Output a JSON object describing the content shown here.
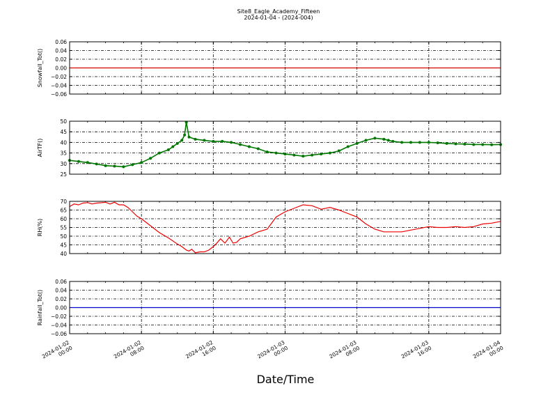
{
  "title": "Site8_Eagle_Academy_Fifteen",
  "subtitle": "2024-01-04 - (2024-004)",
  "chart_data": [
    {
      "type": "line",
      "ylabel": "Snowfall_Tot()",
      "ylim": [
        -0.06,
        0.06
      ],
      "yticks": [
        "0.06",
        "0.04",
        "0.02",
        "0.00",
        "−0.02",
        "−0.04",
        "−0.06"
      ],
      "grid": true,
      "color": "#d40000",
      "markers": false,
      "x_hours": [
        0,
        48
      ],
      "values": [
        0,
        0
      ]
    },
    {
      "type": "line",
      "ylabel": "AirTF()",
      "ylim": [
        25,
        50
      ],
      "yticks": [
        "50",
        "45",
        "40",
        "35",
        "30",
        "25"
      ],
      "grid": true,
      "color": "#007700",
      "markers": true,
      "x_hours": [
        0,
        1,
        2,
        3,
        4,
        5,
        6,
        7,
        8,
        9,
        10,
        11,
        11.5,
        12,
        12.5,
        12.8,
        13,
        13.3,
        14,
        15,
        16,
        17,
        18,
        19,
        20,
        21,
        22,
        23,
        24,
        25,
        26,
        27,
        28,
        29,
        30,
        31,
        32,
        33,
        34,
        35,
        35.5,
        36,
        37,
        38,
        39,
        40,
        41,
        42,
        43,
        44,
        45,
        46,
        47,
        48
      ],
      "values": [
        31.5,
        31,
        30.5,
        29.8,
        29,
        28.8,
        28.5,
        29.5,
        30.5,
        32.5,
        35,
        36.5,
        38,
        39.5,
        41,
        43.5,
        49.5,
        42.5,
        41.5,
        41,
        40.5,
        40.5,
        40,
        39,
        38,
        37,
        35.5,
        35,
        34.5,
        34,
        33.5,
        34,
        34.5,
        35,
        36,
        38,
        39.5,
        41,
        42,
        41.5,
        41,
        40.5,
        40,
        40,
        40,
        40,
        39.8,
        39.5,
        39.3,
        39.2,
        39,
        39,
        38.9,
        39
      ]
    },
    {
      "type": "line",
      "ylabel": "RH(%)",
      "ylim": [
        40,
        70
      ],
      "yticks": [
        "70",
        "65",
        "60",
        "55",
        "50",
        "45",
        "40"
      ],
      "grid": true,
      "color": "#ee0000",
      "markers": false,
      "x_hours": [
        0,
        0.5,
        1,
        1.5,
        2,
        2.5,
        3,
        3.5,
        4,
        4.5,
        5,
        5.5,
        6,
        6.5,
        7,
        7.5,
        8,
        9,
        10,
        11,
        12,
        12.5,
        13,
        13.3,
        13.6,
        14,
        14.5,
        15,
        15.5,
        16,
        16.3,
        16.8,
        17.3,
        17.8,
        18.2,
        18.6,
        19,
        20,
        21,
        22,
        23,
        24,
        25,
        26,
        27,
        28,
        29,
        30,
        31,
        32,
        33,
        34,
        35,
        36,
        37,
        38,
        39,
        40,
        41,
        42,
        43,
        44,
        45,
        46,
        47,
        48
      ],
      "values": [
        67,
        68.5,
        68,
        69,
        69.3,
        68.5,
        69,
        69.2,
        69.5,
        68.5,
        69.5,
        68,
        68,
        66.5,
        64,
        61.5,
        60,
        56,
        52,
        49,
        45.5,
        44,
        42,
        41.5,
        42.5,
        40.5,
        41,
        41,
        42,
        44,
        45.5,
        48.5,
        46,
        49.5,
        46,
        46.5,
        48.5,
        50,
        52.5,
        54,
        61,
        64,
        66,
        68,
        67.5,
        65.5,
        66.5,
        65,
        63,
        61,
        57,
        54,
        52.5,
        52.5,
        52.5,
        53.5,
        54.5,
        55.5,
        55,
        55,
        55.5,
        55,
        55.5,
        57,
        57.5,
        58.5
      ]
    },
    {
      "type": "line",
      "ylabel": "Rainfall_Tot()",
      "ylim": [
        -0.06,
        0.06
      ],
      "yticks": [
        "0.06",
        "0.04",
        "0.02",
        "0.00",
        "−0.02",
        "−0.04",
        "−0.06"
      ],
      "grid": true,
      "color": "#0000cc",
      "markers": false,
      "x_hours": [
        0,
        48
      ],
      "values": [
        0,
        0
      ]
    }
  ],
  "x_axis": {
    "label": "Date/Time",
    "range_hours": [
      0,
      48
    ],
    "tick_hours": [
      0,
      8,
      16,
      24,
      32,
      40,
      48
    ],
    "tick_labels": [
      [
        "2024-01-02",
        "00:00"
      ],
      [
        "2024-01-02",
        "08:00"
      ],
      [
        "2024-01-02",
        "16:00"
      ],
      [
        "2024-01-03",
        "00:00"
      ],
      [
        "2024-01-03",
        "08:00"
      ],
      [
        "2024-01-03",
        "16:00"
      ],
      [
        "2024-01-04",
        "00:00"
      ]
    ]
  }
}
